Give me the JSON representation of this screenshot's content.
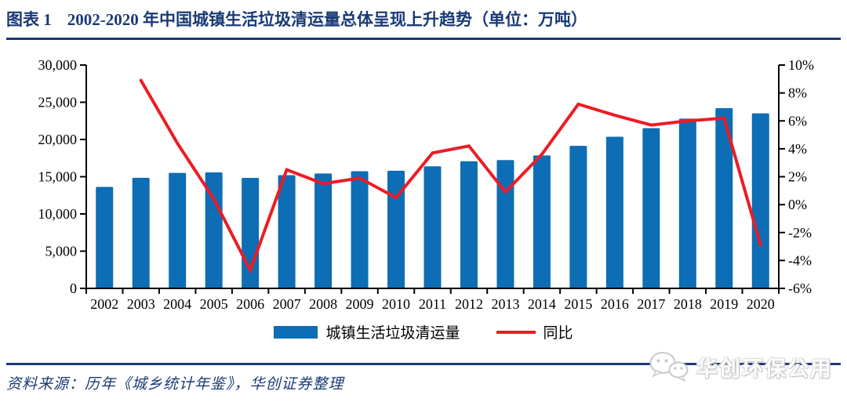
{
  "header": {
    "figure_label": "图表 1",
    "title": "2002-2020 年中国城镇生活垃圾清运量总体呈现上升趋势（单位：万吨）"
  },
  "chart_data": {
    "type": "bar",
    "subtype": "bar-line-combo",
    "title": "2002-2020 年中国城镇生活垃圾清运量总体呈现上升趋势",
    "unit": "万吨",
    "categories": [
      "2002",
      "2003",
      "2004",
      "2005",
      "2006",
      "2007",
      "2008",
      "2009",
      "2010",
      "2011",
      "2012",
      "2013",
      "2014",
      "2015",
      "2016",
      "2017",
      "2018",
      "2019",
      "2020"
    ],
    "series": [
      {
        "name": "城镇生活垃圾清运量",
        "type": "bar",
        "axis": "left",
        "color": "#0d6db5",
        "values": [
          13638,
          14857,
          15509,
          15577,
          14841,
          15215,
          15438,
          15734,
          15805,
          16395,
          17081,
          17239,
          17860,
          19142,
          20362,
          21521,
          22802,
          24206,
          23512
        ]
      },
      {
        "name": "同比",
        "type": "line",
        "axis": "right",
        "color": "#ec1c24",
        "unit": "%",
        "values": [
          null,
          8.9,
          4.4,
          0.4,
          -4.7,
          2.5,
          1.5,
          1.9,
          0.5,
          3.7,
          4.2,
          0.9,
          3.6,
          7.2,
          6.4,
          5.7,
          6.0,
          6.2,
          -2.9
        ]
      }
    ],
    "left_axis": {
      "min": 0,
      "max": 30000,
      "tick_labels": [
        "30,000",
        "25,000",
        "20,000",
        "15,000",
        "10,000",
        "5,000",
        "0"
      ]
    },
    "right_axis": {
      "min": -6,
      "max": 10,
      "tick_labels": [
        "10%",
        "8%",
        "6%",
        "4%",
        "2%",
        "0%",
        "-2%",
        "-4%",
        "-6%"
      ]
    },
    "grid": false,
    "legend_position": "bottom"
  },
  "footer": {
    "source": "资料来源：历年《城乡统计年鉴》，华创证券整理"
  },
  "watermark": {
    "text": "华创环保公用"
  },
  "colors": {
    "bar": "#0d6db5",
    "line": "#ec1c24",
    "navy": "#1a3a74",
    "axis": "#000000"
  }
}
